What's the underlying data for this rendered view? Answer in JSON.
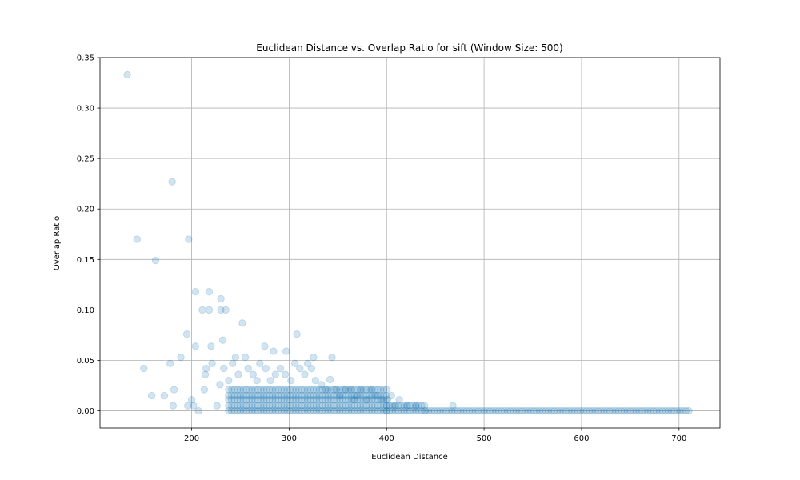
{
  "chart_data": {
    "type": "scatter",
    "title": "Euclidean Distance vs. Overlap Ratio for sift (Window Size: 500)",
    "xlabel": "Euclidean Distance",
    "ylabel": "Overlap Ratio",
    "xlim": [
      106,
      742
    ],
    "ylim": [
      -0.017,
      0.35
    ],
    "xticks": [
      200,
      300,
      400,
      500,
      600,
      700
    ],
    "yticks": [
      0.0,
      0.05,
      0.1,
      0.15,
      0.2,
      0.25,
      0.3,
      0.35
    ],
    "grid": true,
    "legend": "none",
    "color": "#1f77b4",
    "point_alpha": 0.2,
    "series": [
      {
        "points": [
          [
            134,
            0.333
          ],
          [
            144,
            0.17
          ],
          [
            180,
            0.227
          ],
          [
            163,
            0.149
          ],
          [
            197,
            0.17
          ],
          [
            204,
            0.118
          ],
          [
            218,
            0.118
          ],
          [
            211,
            0.1
          ],
          [
            218,
            0.1
          ],
          [
            230,
            0.1
          ],
          [
            235,
            0.1
          ],
          [
            230,
            0.111
          ],
          [
            252,
            0.087
          ],
          [
            195,
            0.076
          ],
          [
            308,
            0.076
          ],
          [
            151,
            0.042
          ],
          [
            178,
            0.047
          ],
          [
            189,
            0.053
          ],
          [
            204,
            0.064
          ],
          [
            220,
            0.064
          ],
          [
            232,
            0.07
          ],
          [
            275,
            0.064
          ],
          [
            284,
            0.059
          ],
          [
            297,
            0.059
          ],
          [
            344,
            0.053
          ],
          [
            325,
            0.053
          ],
          [
            245,
            0.053
          ],
          [
            255,
            0.053
          ],
          [
            159,
            0.015
          ],
          [
            172,
            0.015
          ],
          [
            182,
            0.021
          ],
          [
            181,
            0.005
          ],
          [
            196,
            0.005
          ],
          [
            200,
            0.011
          ],
          [
            202,
            0.005
          ],
          [
            207,
            0.0
          ],
          [
            213,
            0.021
          ],
          [
            214,
            0.036
          ],
          [
            215,
            0.042
          ],
          [
            221,
            0.047
          ],
          [
            226,
            0.005
          ],
          [
            229,
            0.026
          ],
          [
            233,
            0.042
          ],
          [
            238,
            0.03
          ],
          [
            242,
            0.047
          ],
          [
            248,
            0.036
          ],
          [
            258,
            0.042
          ],
          [
            263,
            0.036
          ],
          [
            267,
            0.03
          ],
          [
            270,
            0.047
          ],
          [
            276,
            0.042
          ],
          [
            281,
            0.03
          ],
          [
            286,
            0.036
          ],
          [
            291,
            0.042
          ],
          [
            296,
            0.036
          ],
          [
            302,
            0.03
          ],
          [
            306,
            0.047
          ],
          [
            311,
            0.042
          ],
          [
            316,
            0.036
          ],
          [
            319,
            0.047
          ],
          [
            323,
            0.042
          ],
          [
            327,
            0.03
          ],
          [
            333,
            0.026
          ],
          [
            338,
            0.021
          ],
          [
            342,
            0.031
          ],
          [
            348,
            0.021
          ],
          [
            352,
            0.015
          ],
          [
            357,
            0.021
          ],
          [
            363,
            0.021
          ],
          [
            366,
            0.011
          ],
          [
            369,
            0.015
          ],
          [
            374,
            0.021
          ],
          [
            380,
            0.011
          ],
          [
            384,
            0.021
          ],
          [
            389,
            0.015
          ],
          [
            395,
            0.011
          ],
          [
            401,
            0.011
          ],
          [
            405,
            0.015
          ],
          [
            408,
            0.005
          ],
          [
            413,
            0.011
          ],
          [
            421,
            0.005
          ],
          [
            430,
            0.005
          ],
          [
            468,
            0.005
          ]
        ],
        "dense_band": [
          {
            "x_range": [
              238,
              400
            ],
            "y_values": [
              0.0,
              0.005,
              0.011,
              0.015,
              0.021
            ]
          },
          {
            "x_range": [
              400,
              440
            ],
            "y_values": [
              0.0,
              0.005
            ]
          },
          {
            "x_range": [
              440,
              712
            ],
            "y_values": [
              0.0
            ]
          }
        ]
      }
    ]
  }
}
